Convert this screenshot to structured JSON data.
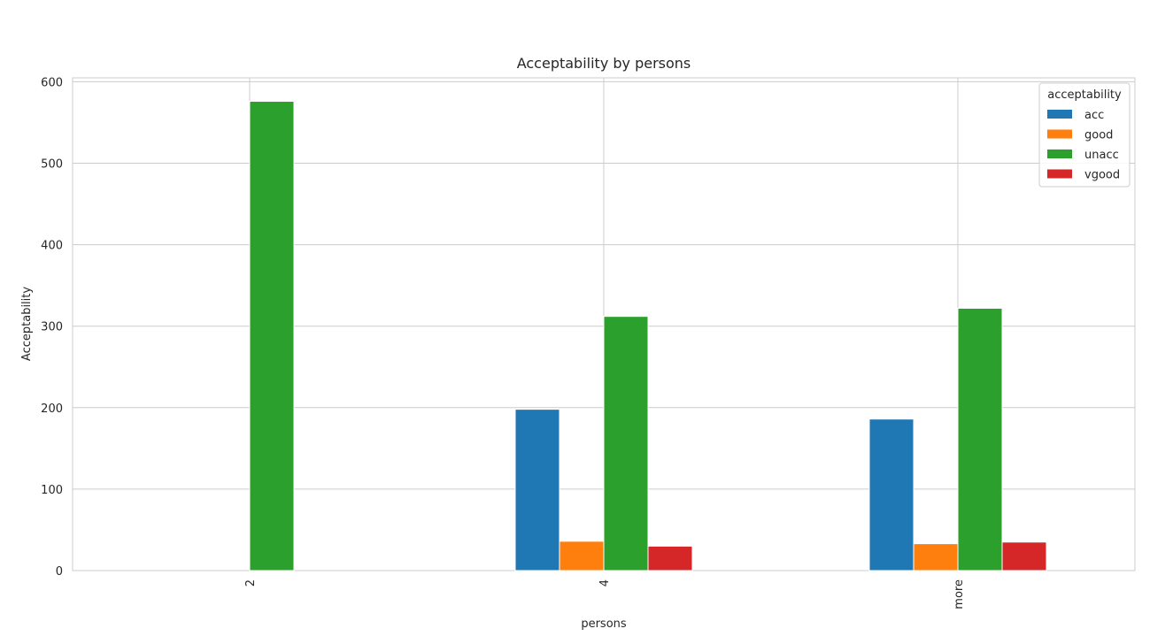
{
  "chart_data": {
    "type": "bar",
    "title": "Acceptability by persons",
    "xlabel": "persons",
    "ylabel": "Acceptability",
    "categories": [
      "2",
      "4",
      "more"
    ],
    "series": [
      {
        "name": "acc",
        "color": "#1f77b4",
        "values": [
          0,
          198,
          186
        ]
      },
      {
        "name": "good",
        "color": "#ff7f0e",
        "values": [
          0,
          36,
          33
        ]
      },
      {
        "name": "unacc",
        "color": "#2ca02c",
        "values": [
          576,
          312,
          322
        ]
      },
      {
        "name": "vgood",
        "color": "#d62728",
        "values": [
          0,
          30,
          35
        ]
      }
    ],
    "ylim": [
      0,
      604.8
    ],
    "yticks": [
      0,
      100,
      200,
      300,
      400,
      500,
      600
    ],
    "ytick_labels": [
      "0",
      "100",
      "200",
      "300",
      "400",
      "500",
      "600"
    ],
    "xtick_rotation": 90,
    "legend": {
      "title": "acceptability",
      "position": "top-right"
    },
    "grid": true
  }
}
